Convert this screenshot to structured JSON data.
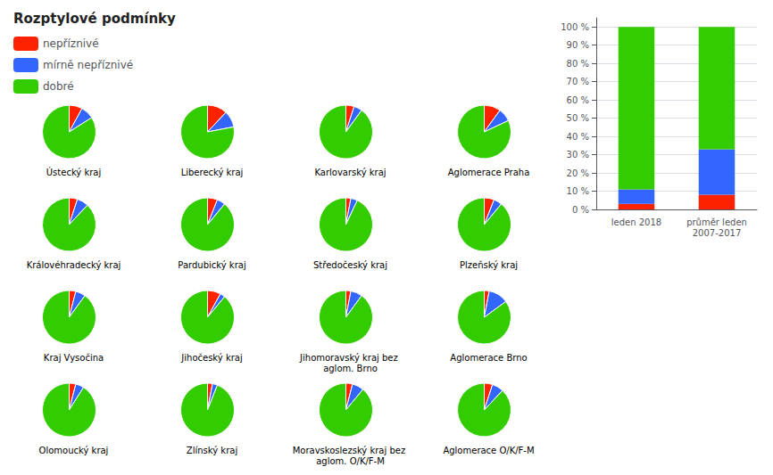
{
  "chart_data": [
    {
      "type": "pie",
      "title": "Rozptylové podmínky",
      "legend": "top-left",
      "categories": [
        "nepříznivé",
        "mírně nepříznivé",
        "dobré"
      ],
      "colors": [
        "#ff2200",
        "#3366ff",
        "#33cc00"
      ],
      "series": [
        {
          "name": "Ústecký kraj",
          "values": [
            8,
            8,
            84
          ]
        },
        {
          "name": "Liberecký kraj",
          "values": [
            12,
            10,
            78
          ]
        },
        {
          "name": "Karlovarský kraj",
          "values": [
            5,
            5,
            90
          ]
        },
        {
          "name": "Aglomerace Praha",
          "values": [
            10,
            8,
            82
          ]
        },
        {
          "name": "Královéhradecký kraj",
          "values": [
            5,
            7,
            88
          ]
        },
        {
          "name": "Pardubický kraj",
          "values": [
            6,
            5,
            89
          ]
        },
        {
          "name": "Středočeský kraj",
          "values": [
            3,
            4,
            93
          ]
        },
        {
          "name": "Plzeňský kraj",
          "values": [
            6,
            5,
            89
          ]
        },
        {
          "name": "Kraj Vysočina",
          "values": [
            4,
            6,
            90
          ]
        },
        {
          "name": "Jihočeský kraj",
          "values": [
            8,
            3,
            89
          ]
        },
        {
          "name": "Jihomoravský kraj bez aglom. Brno",
          "values": [
            3,
            7,
            90
          ]
        },
        {
          "name": "Aglomerace Brno",
          "values": [
            3,
            12,
            85
          ]
        },
        {
          "name": "Olomoucký kraj",
          "values": [
            4,
            5,
            91
          ]
        },
        {
          "name": "Zlínský kraj",
          "values": [
            3,
            3,
            94
          ]
        },
        {
          "name": "Moravskoslezský kraj bez aglom. O/K/F-M",
          "values": [
            4,
            7,
            89
          ]
        },
        {
          "name": "Aglomerace O/K/F-M",
          "values": [
            5,
            7,
            88
          ]
        }
      ]
    },
    {
      "type": "bar",
      "stacked": true,
      "categories": [
        "leden 2018",
        "průměr leden\n2007-2017"
      ],
      "series": [
        {
          "name": "nepříznivé",
          "color": "#ff2200",
          "values": [
            3,
            8
          ]
        },
        {
          "name": "mírně nepříznivé",
          "color": "#3366ff",
          "values": [
            8,
            25
          ]
        },
        {
          "name": "dobré",
          "color": "#33cc00",
          "values": [
            89,
            67
          ]
        }
      ],
      "ylim": [
        0,
        105
      ],
      "yticks": [
        {
          "value": 0,
          "label": "0 %"
        },
        {
          "value": 10,
          "label": "10 %"
        },
        {
          "value": 20,
          "label": "20 %"
        },
        {
          "value": 30,
          "label": "30 %"
        },
        {
          "value": 40,
          "label": "40 %"
        },
        {
          "value": 50,
          "label": "50 %"
        },
        {
          "value": 60,
          "label": "60 %"
        },
        {
          "value": 70,
          "label": "70 %"
        },
        {
          "value": 80,
          "label": "80 %"
        },
        {
          "value": 90,
          "label": "90 %"
        },
        {
          "value": 100,
          "label": "100 %"
        }
      ],
      "grid": true
    }
  ]
}
